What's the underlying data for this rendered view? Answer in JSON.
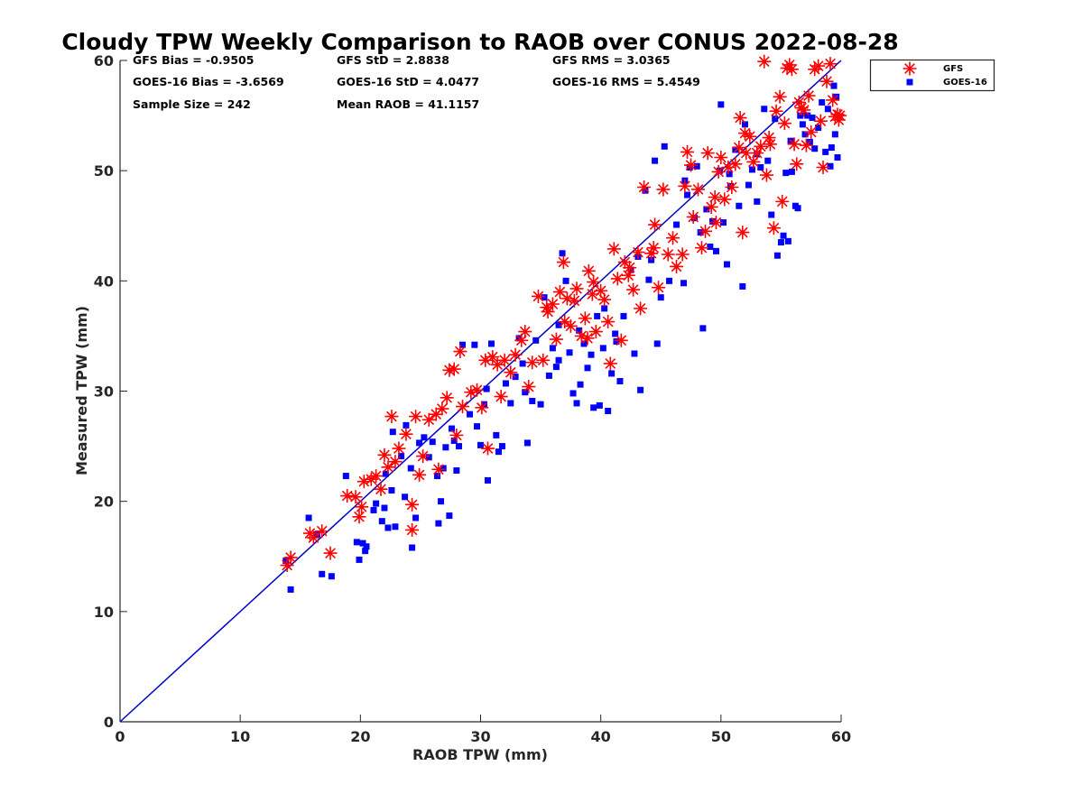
{
  "chart_data": {
    "type": "scatter",
    "title": "Cloudy TPW Weekly Comparison to RAOB over CONUS 2022-08-28",
    "xlabel": "RAOB TPW (mm)",
    "ylabel": "Measured TPW (mm)",
    "xlim": [
      0,
      60
    ],
    "ylim": [
      0,
      60
    ],
    "xticks": [
      0,
      10,
      20,
      30,
      40,
      50,
      60
    ],
    "yticks": [
      0,
      10,
      20,
      30,
      40,
      50,
      60
    ],
    "grid": false,
    "legend_position": "outside-top-right",
    "reference_line": {
      "from": [
        0,
        0
      ],
      "to": [
        60,
        60
      ],
      "color": "#0000cc"
    },
    "stats": [
      "GFS Bias = -0.9505",
      "GFS StD = 2.8838",
      "GFS RMS = 3.0365",
      "GOES-16 Bias = -3.6569",
      "GOES-16 StD = 4.0477",
      "GOES-16 RMS = 5.4549",
      "Sample Size = 242",
      "Mean RAOB = 41.1157"
    ],
    "series": [
      {
        "name": "GFS",
        "marker": "asterisk",
        "color": "#ff0000",
        "points": [
          [
            13.9,
            14.2
          ],
          [
            14.2,
            14.9
          ],
          [
            15.8,
            17.1
          ],
          [
            16.1,
            16.7
          ],
          [
            16.8,
            17.3
          ],
          [
            17.5,
            15.3
          ],
          [
            18.9,
            20.5
          ],
          [
            19.6,
            20.4
          ],
          [
            19.9,
            18.6
          ],
          [
            20.1,
            19.5
          ],
          [
            20.3,
            21.8
          ],
          [
            20.9,
            22.0
          ],
          [
            21.3,
            22.3
          ],
          [
            21.7,
            21.1
          ],
          [
            22.0,
            24.2
          ],
          [
            22.3,
            23.1
          ],
          [
            22.6,
            27.7
          ],
          [
            22.9,
            23.6
          ],
          [
            23.2,
            24.8
          ],
          [
            23.8,
            26.1
          ],
          [
            24.3,
            19.7
          ],
          [
            24.3,
            17.4
          ],
          [
            24.6,
            27.7
          ],
          [
            24.9,
            22.4
          ],
          [
            25.2,
            24.1
          ],
          [
            25.7,
            27.4
          ],
          [
            26.3,
            27.9
          ],
          [
            26.5,
            22.9
          ],
          [
            26.8,
            28.4
          ],
          [
            27.2,
            29.4
          ],
          [
            27.4,
            31.9
          ],
          [
            27.8,
            32.0
          ],
          [
            28.3,
            33.6
          ],
          [
            28.0,
            26.0
          ],
          [
            28.5,
            28.6
          ],
          [
            29.2,
            29.9
          ],
          [
            29.7,
            30.1
          ],
          [
            30.1,
            28.5
          ],
          [
            30.4,
            32.8
          ],
          [
            30.6,
            24.8
          ],
          [
            31.0,
            33.1
          ],
          [
            31.4,
            32.4
          ],
          [
            31.7,
            29.5
          ],
          [
            32.0,
            32.8
          ],
          [
            32.5,
            31.7
          ],
          [
            32.9,
            33.3
          ],
          [
            33.4,
            34.6
          ],
          [
            33.7,
            35.4
          ],
          [
            34.0,
            30.4
          ],
          [
            34.3,
            32.6
          ],
          [
            34.8,
            38.6
          ],
          [
            35.2,
            32.8
          ],
          [
            35.6,
            37.2
          ],
          [
            36.0,
            37.9
          ],
          [
            36.3,
            34.7
          ],
          [
            36.6,
            39.0
          ],
          [
            36.9,
            41.7
          ],
          [
            37.2,
            38.4
          ],
          [
            37.5,
            35.9
          ],
          [
            37.8,
            38.2
          ],
          [
            38.0,
            39.3
          ],
          [
            38.4,
            35.0
          ],
          [
            38.7,
            36.6
          ],
          [
            39.0,
            40.9
          ],
          [
            39.3,
            38.8
          ],
          [
            39.6,
            35.4
          ],
          [
            40.0,
            39.1
          ],
          [
            40.3,
            38.3
          ],
          [
            40.6,
            36.3
          ],
          [
            40.8,
            32.5
          ],
          [
            41.1,
            42.9
          ],
          [
            41.4,
            40.2
          ],
          [
            41.7,
            34.6
          ],
          [
            42.0,
            41.7
          ],
          [
            42.3,
            40.5
          ],
          [
            42.7,
            39.2
          ],
          [
            43.1,
            42.6
          ],
          [
            43.3,
            37.5
          ],
          [
            43.6,
            48.5
          ],
          [
            44.2,
            42.5
          ],
          [
            44.5,
            45.1
          ],
          [
            44.8,
            39.4
          ],
          [
            45.2,
            48.3
          ],
          [
            45.6,
            42.4
          ],
          [
            46.3,
            41.3
          ],
          [
            46.8,
            42.4
          ],
          [
            47.0,
            48.6
          ],
          [
            47.2,
            51.7
          ],
          [
            47.5,
            50.5
          ],
          [
            47.7,
            45.8
          ],
          [
            48.1,
            48.3
          ],
          [
            48.4,
            43.0
          ],
          [
            48.7,
            44.5
          ],
          [
            48.9,
            51.6
          ],
          [
            49.2,
            46.7
          ],
          [
            49.5,
            47.6
          ],
          [
            49.8,
            49.9
          ],
          [
            50.0,
            51.2
          ],
          [
            50.3,
            47.4
          ],
          [
            50.6,
            50.3
          ],
          [
            50.9,
            48.5
          ],
          [
            51.2,
            50.6
          ],
          [
            51.5,
            52.1
          ],
          [
            51.6,
            54.8
          ],
          [
            51.8,
            44.4
          ],
          [
            52.1,
            51.6
          ],
          [
            52.4,
            53.1
          ],
          [
            52.7,
            50.8
          ],
          [
            53.0,
            51.6
          ],
          [
            53.3,
            52.2
          ],
          [
            53.6,
            59.9
          ],
          [
            53.8,
            49.6
          ],
          [
            54.1,
            52.4
          ],
          [
            54.4,
            44.8
          ],
          [
            54.6,
            55.4
          ],
          [
            54.9,
            56.7
          ],
          [
            55.1,
            47.2
          ],
          [
            55.3,
            54.3
          ],
          [
            55.5,
            59.3
          ],
          [
            55.7,
            59.6
          ],
          [
            55.9,
            59.2
          ],
          [
            56.1,
            52.4
          ],
          [
            56.3,
            50.6
          ],
          [
            56.5,
            56.2
          ],
          [
            56.7,
            55.7
          ],
          [
            56.9,
            55.5
          ],
          [
            57.1,
            52.3
          ],
          [
            57.3,
            56.8
          ],
          [
            57.5,
            53.5
          ],
          [
            57.8,
            59.2
          ],
          [
            58.1,
            59.5
          ],
          [
            58.3,
            54.5
          ],
          [
            58.5,
            50.3
          ],
          [
            58.8,
            58.1
          ],
          [
            59.1,
            59.7
          ],
          [
            59.3,
            56.4
          ],
          [
            59.5,
            54.9
          ],
          [
            59.7,
            55.1
          ],
          [
            59.8,
            54.6
          ],
          [
            59.9,
            55.0
          ],
          [
            35.5,
            37.6
          ],
          [
            37.0,
            36.3
          ],
          [
            38.9,
            34.8
          ],
          [
            39.4,
            39.9
          ],
          [
            42.4,
            41.2
          ],
          [
            44.4,
            43.0
          ],
          [
            46.0,
            43.9
          ],
          [
            49.6,
            45.3
          ],
          [
            52.0,
            53.4
          ],
          [
            54.0,
            53.0
          ]
        ]
      },
      {
        "name": "GOES-16",
        "marker": "square",
        "color": "#0000ff",
        "points": [
          [
            13.8,
            14.6
          ],
          [
            14.2,
            12.0
          ],
          [
            15.7,
            18.5
          ],
          [
            16.4,
            17.0
          ],
          [
            16.8,
            13.4
          ],
          [
            17.6,
            13.2
          ],
          [
            18.8,
            22.3
          ],
          [
            19.7,
            16.3
          ],
          [
            19.9,
            14.7
          ],
          [
            20.2,
            16.2
          ],
          [
            20.4,
            15.5
          ],
          [
            20.5,
            15.9
          ],
          [
            21.1,
            19.2
          ],
          [
            21.3,
            19.8
          ],
          [
            21.8,
            18.2
          ],
          [
            22.0,
            19.4
          ],
          [
            22.1,
            22.5
          ],
          [
            22.3,
            17.6
          ],
          [
            22.6,
            21.0
          ],
          [
            22.9,
            17.7
          ],
          [
            22.7,
            26.3
          ],
          [
            23.4,
            24.1
          ],
          [
            23.7,
            20.4
          ],
          [
            23.8,
            26.9
          ],
          [
            24.2,
            23.0
          ],
          [
            24.3,
            15.8
          ],
          [
            24.6,
            18.5
          ],
          [
            24.9,
            25.3
          ],
          [
            25.3,
            25.8
          ],
          [
            25.7,
            24.0
          ],
          [
            26.0,
            25.4
          ],
          [
            26.4,
            22.3
          ],
          [
            26.5,
            18.0
          ],
          [
            26.7,
            20.0
          ],
          [
            26.9,
            23.0
          ],
          [
            27.1,
            24.9
          ],
          [
            27.4,
            18.7
          ],
          [
            27.6,
            26.6
          ],
          [
            27.8,
            25.5
          ],
          [
            28.0,
            22.8
          ],
          [
            28.2,
            25.0
          ],
          [
            28.5,
            34.2
          ],
          [
            29.1,
            27.9
          ],
          [
            29.5,
            34.2
          ],
          [
            29.7,
            26.8
          ],
          [
            30.0,
            25.1
          ],
          [
            30.3,
            28.8
          ],
          [
            30.5,
            30.2
          ],
          [
            30.6,
            21.9
          ],
          [
            30.9,
            34.3
          ],
          [
            31.3,
            26.0
          ],
          [
            31.5,
            24.5
          ],
          [
            31.8,
            25.0
          ],
          [
            32.1,
            30.7
          ],
          [
            32.5,
            28.9
          ],
          [
            32.9,
            31.3
          ],
          [
            33.2,
            34.8
          ],
          [
            33.5,
            32.5
          ],
          [
            33.7,
            29.9
          ],
          [
            33.9,
            25.3
          ],
          [
            34.3,
            29.1
          ],
          [
            34.6,
            34.6
          ],
          [
            35.0,
            28.8
          ],
          [
            35.3,
            38.5
          ],
          [
            35.7,
            31.4
          ],
          [
            36.0,
            33.9
          ],
          [
            36.3,
            32.2
          ],
          [
            36.5,
            32.8
          ],
          [
            36.8,
            42.5
          ],
          [
            37.1,
            40.0
          ],
          [
            37.4,
            33.5
          ],
          [
            37.7,
            29.8
          ],
          [
            38.0,
            28.9
          ],
          [
            38.3,
            30.6
          ],
          [
            38.6,
            34.3
          ],
          [
            38.9,
            32.1
          ],
          [
            39.2,
            33.3
          ],
          [
            39.4,
            28.5
          ],
          [
            39.7,
            36.8
          ],
          [
            39.9,
            28.7
          ],
          [
            40.3,
            37.5
          ],
          [
            40.6,
            28.2
          ],
          [
            40.9,
            31.6
          ],
          [
            41.3,
            34.5
          ],
          [
            41.6,
            30.9
          ],
          [
            41.9,
            36.8
          ],
          [
            42.5,
            41.0
          ],
          [
            42.8,
            33.4
          ],
          [
            43.1,
            42.2
          ],
          [
            43.3,
            30.1
          ],
          [
            43.7,
            48.2
          ],
          [
            44.2,
            41.9
          ],
          [
            44.5,
            50.9
          ],
          [
            44.7,
            34.3
          ],
          [
            45.0,
            38.5
          ],
          [
            45.3,
            52.2
          ],
          [
            45.7,
            40.0
          ],
          [
            46.3,
            45.1
          ],
          [
            46.9,
            39.8
          ],
          [
            47.2,
            47.8
          ],
          [
            47.4,
            50.3
          ],
          [
            47.8,
            45.7
          ],
          [
            48.0,
            50.4
          ],
          [
            48.3,
            44.4
          ],
          [
            48.5,
            35.7
          ],
          [
            48.8,
            46.5
          ],
          [
            49.1,
            43.1
          ],
          [
            49.3,
            45.4
          ],
          [
            49.6,
            42.7
          ],
          [
            49.9,
            50.0
          ],
          [
            50.0,
            56.0
          ],
          [
            50.2,
            45.3
          ],
          [
            50.5,
            41.5
          ],
          [
            50.8,
            48.6
          ],
          [
            51.2,
            51.9
          ],
          [
            51.5,
            46.8
          ],
          [
            51.8,
            39.5
          ],
          [
            52.0,
            54.2
          ],
          [
            52.3,
            48.7
          ],
          [
            52.6,
            50.1
          ],
          [
            53.0,
            51.5
          ],
          [
            53.3,
            50.3
          ],
          [
            53.6,
            55.6
          ],
          [
            53.9,
            50.9
          ],
          [
            54.2,
            46.0
          ],
          [
            54.5,
            54.7
          ],
          [
            54.7,
            42.3
          ],
          [
            55.0,
            43.5
          ],
          [
            55.2,
            44.1
          ],
          [
            55.4,
            49.8
          ],
          [
            55.6,
            43.6
          ],
          [
            55.9,
            49.9
          ],
          [
            56.2,
            46.8
          ],
          [
            56.4,
            46.6
          ],
          [
            56.6,
            55.0
          ],
          [
            56.8,
            54.2
          ],
          [
            57.2,
            55.0
          ],
          [
            57.4,
            52.6
          ],
          [
            57.6,
            54.8
          ],
          [
            57.8,
            52.0
          ],
          [
            58.1,
            53.9
          ],
          [
            58.4,
            56.2
          ],
          [
            58.7,
            51.7
          ],
          [
            59.1,
            50.4
          ],
          [
            59.4,
            57.7
          ],
          [
            59.5,
            53.3
          ],
          [
            59.7,
            51.2
          ],
          [
            59.6,
            56.7
          ],
          [
            59.2,
            52.1
          ],
          [
            58.9,
            55.6
          ],
          [
            36.5,
            36.0
          ],
          [
            38.2,
            35.5
          ],
          [
            40.2,
            33.9
          ],
          [
            41.2,
            35.2
          ],
          [
            44.0,
            40.1
          ],
          [
            47.0,
            49.1
          ],
          [
            50.7,
            49.7
          ],
          [
            53.0,
            47.2
          ],
          [
            55.8,
            52.7
          ],
          [
            57.0,
            53.3
          ]
        ]
      }
    ]
  }
}
